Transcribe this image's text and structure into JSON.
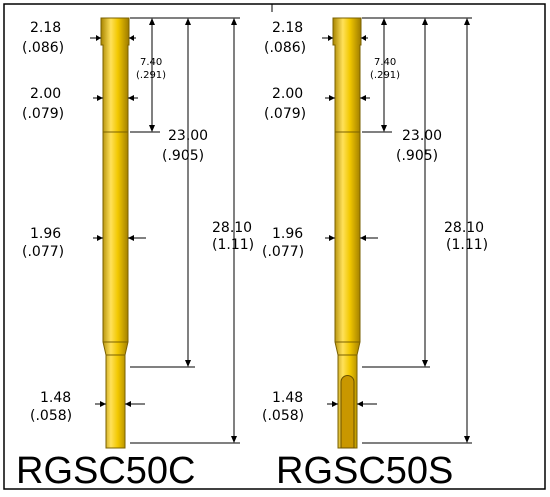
{
  "drawings": [
    {
      "label": "RGSC50C",
      "tip_style": "plain",
      "dims": {
        "head_dia": "2.18",
        "head_dia_in": "(.086)",
        "collar_len": "7.40",
        "collar_len_in": "(.291)",
        "upper_dia": "2.00",
        "upper_dia_in": "(.079)",
        "mid_len": "23.00",
        "mid_len_in": "(.905)",
        "barrel_dia": "1.96",
        "barrel_dia_in": "(.077)",
        "total_len": "28.10",
        "total_len_in": "(1.11)",
        "tip_dia": "1.48",
        "tip_dia_in": "(.058)"
      }
    },
    {
      "label": "RGSC50S",
      "tip_style": "slotted",
      "dims": {
        "head_dia": "2.18",
        "head_dia_in": "(.086)",
        "collar_len": "7.40",
        "collar_len_in": "(.291)",
        "upper_dia": "2.00",
        "upper_dia_in": "(.079)",
        "mid_len": "23.00",
        "mid_len_in": "(.905)",
        "barrel_dia": "1.96",
        "barrel_dia_in": "(.077)",
        "total_len": "28.10",
        "total_len_in": "(1.11)",
        "tip_dia": "1.48",
        "tip_dia_in": "(.058)"
      }
    }
  ],
  "colors": {
    "gold": "#f2cc00",
    "gold_light": "#ffe066",
    "gold_dark": "#b08a00",
    "line": "#000000"
  }
}
